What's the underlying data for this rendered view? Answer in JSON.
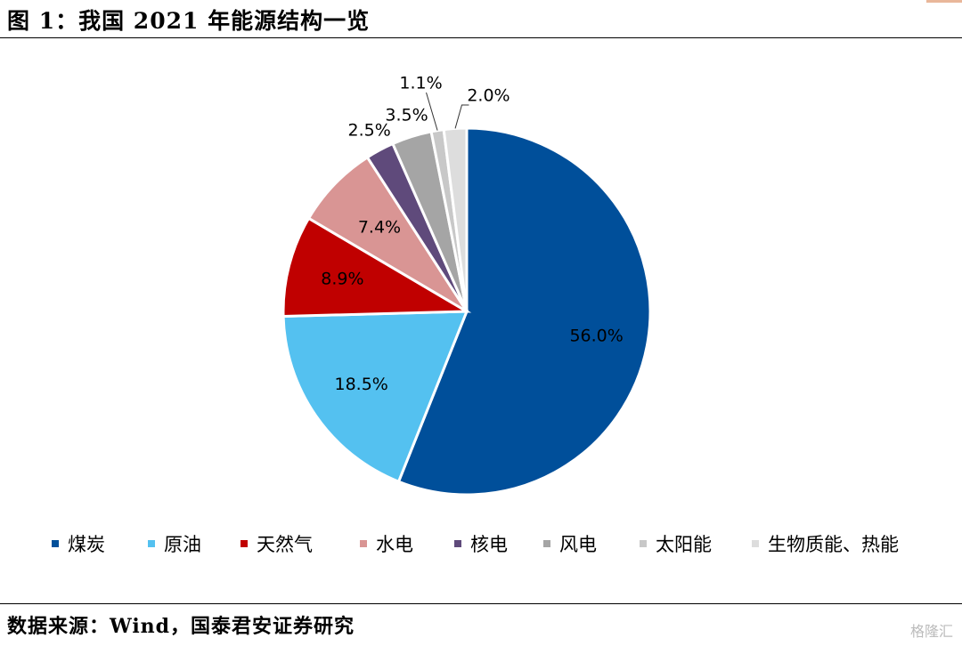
{
  "header": {
    "title": "图 1：我国 2021 年能源结构一览"
  },
  "footer": {
    "source": "数据来源：Wind，国泰君安证券研究",
    "watermark": "格隆汇"
  },
  "chart_data": {
    "type": "pie",
    "title": "",
    "start_angle_deg": 0,
    "direction": "clockwise",
    "legend_position": "bottom",
    "slices": [
      {
        "label": "煤炭",
        "value": 56.0,
        "display": "56.0%",
        "color": "#004f9a"
      },
      {
        "label": "原油",
        "value": 18.5,
        "display": "18.5%",
        "color": "#54c1f0"
      },
      {
        "label": "天然气",
        "value": 8.9,
        "display": "8.9%",
        "color": "#c00000"
      },
      {
        "label": "水电",
        "value": 7.4,
        "display": "7.4%",
        "color": "#d99594"
      },
      {
        "label": "核电",
        "value": 2.5,
        "display": "2.5%",
        "color": "#5f4a7b"
      },
      {
        "label": "风电",
        "value": 3.5,
        "display": "3.5%",
        "color": "#a5a5a5"
      },
      {
        "label": "太阳能",
        "value": 1.1,
        "display": "1.1%",
        "color": "#c8c8c8"
      },
      {
        "label": "生物质能、热能",
        "value": 2.0,
        "display": "2.0%",
        "color": "#dddddd"
      }
    ]
  }
}
